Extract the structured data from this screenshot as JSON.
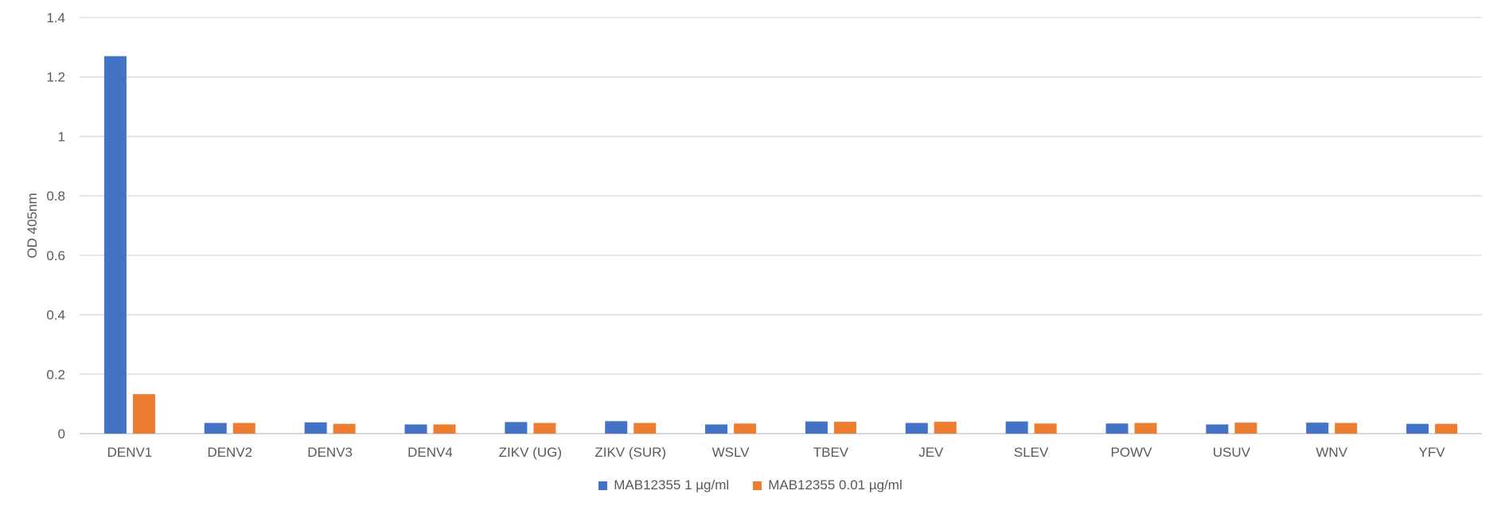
{
  "chart_data": {
    "type": "bar",
    "title": "",
    "xlabel": "",
    "ylabel": "OD 405nm",
    "ylim": [
      0,
      1.4
    ],
    "yticks": [
      "0",
      "0.2",
      "0.4",
      "0.6",
      "0.8",
      "1",
      "1.2",
      "1.4"
    ],
    "grid": true,
    "legend_position": "bottom",
    "categories": [
      "DENV1",
      "DENV2",
      "DENV3",
      "DENV4",
      "ZIKV (UG)",
      "ZIKV (SUR)",
      "WSLV",
      "TBEV",
      "JEV",
      "SLEV",
      "POWV",
      "USUV",
      "WNV",
      "YFV"
    ],
    "series": [
      {
        "name": "MAB12355 1 µg/ml",
        "color": "#4472C4",
        "values": [
          1.27,
          0.036,
          0.038,
          0.031,
          0.039,
          0.042,
          0.031,
          0.041,
          0.036,
          0.041,
          0.034,
          0.031,
          0.037,
          0.033
        ]
      },
      {
        "name": "MAB12355 0.01 µg/ml",
        "color": "#ED7D31",
        "values": [
          0.133,
          0.036,
          0.033,
          0.031,
          0.036,
          0.036,
          0.034,
          0.04,
          0.04,
          0.034,
          0.036,
          0.037,
          0.036,
          0.033
        ]
      }
    ]
  }
}
